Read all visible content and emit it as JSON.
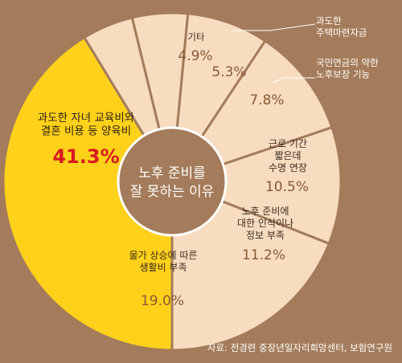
{
  "chart_data": {
    "type": "pie",
    "center_label": [
      "노후 준비를",
      "잘 못하는 이유"
    ],
    "slices": [
      {
        "label": [
          "과도한 자녀 교육비와",
          "결혼 비용 등 양육비"
        ],
        "value": 41.3,
        "value_text": "41.3%"
      },
      {
        "label": [
          "기타"
        ],
        "value": 4.9,
        "value_text": "4.9%"
      },
      {
        "label": [
          "과도한",
          "주택마련자금"
        ],
        "value": 5.3,
        "value_text": "5.3%"
      },
      {
        "label": [
          "국민연금의 약한",
          "노후보장 기능"
        ],
        "value": 7.8,
        "value_text": "7.8%"
      },
      {
        "label": [
          "근로 기간",
          "짧은데",
          "수명 연장"
        ],
        "value": 10.5,
        "value_text": "10.5%"
      },
      {
        "label": [
          "노후 준비에",
          "대한 인식이나",
          "정보 부족"
        ],
        "value": 11.2,
        "value_text": "11.2%"
      },
      {
        "label": [
          "물가 상승에 따른",
          "생활비 부족"
        ],
        "value": 19.0,
        "value_text": "19.0%"
      }
    ]
  },
  "source": "자료: 전경련 중장년일자리희망센터, 보험연구원",
  "colors": {
    "background": "#A47C5B",
    "highlight": "#FFD11A",
    "slice": "#F7DCC0",
    "separator": "#A47C5B",
    "center": "#A47C5B",
    "center_text": "#FFFFFF",
    "highlight_value": "#D71A20",
    "value_text": "#8A5A33",
    "label_text": "#3A2A1F",
    "source_text": "#FFFFFF"
  }
}
